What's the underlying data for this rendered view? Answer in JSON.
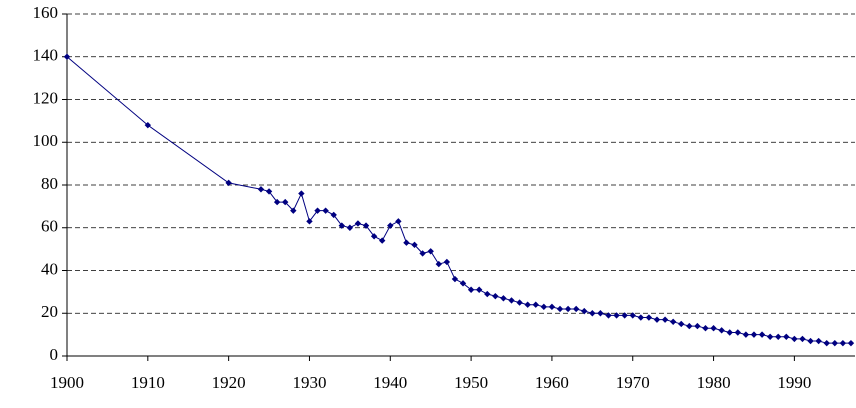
{
  "chart_data": {
    "type": "line",
    "x": [
      1900,
      1910,
      1920,
      1924,
      1925,
      1926,
      1927,
      1928,
      1929,
      1930,
      1931,
      1932,
      1933,
      1934,
      1935,
      1936,
      1937,
      1938,
      1939,
      1940,
      1941,
      1942,
      1943,
      1944,
      1945,
      1946,
      1947,
      1948,
      1949,
      1950,
      1951,
      1952,
      1953,
      1954,
      1955,
      1956,
      1957,
      1958,
      1959,
      1960,
      1961,
      1962,
      1963,
      1964,
      1965,
      1966,
      1967,
      1968,
      1969,
      1970,
      1971,
      1972,
      1973,
      1974,
      1975,
      1976,
      1977,
      1978,
      1979,
      1980,
      1981,
      1982,
      1983,
      1984,
      1985,
      1986,
      1987,
      1988,
      1989,
      1990,
      1991,
      1992,
      1993,
      1994,
      1995,
      1996,
      1997
    ],
    "values": [
      140,
      108,
      81,
      78,
      77,
      72,
      72,
      68,
      76,
      63,
      68,
      68,
      66,
      61,
      60,
      62,
      61,
      56,
      54,
      61,
      63,
      53,
      52,
      48,
      49,
      43,
      44,
      36,
      34,
      31,
      31,
      29,
      28,
      27,
      26,
      25,
      24,
      24,
      23,
      23,
      22,
      22,
      22,
      21,
      20,
      20,
      19,
      19,
      19,
      19,
      18,
      18,
      17,
      17,
      16,
      15,
      14,
      14,
      13,
      13,
      12,
      11,
      11,
      10,
      10,
      10,
      9,
      9,
      9,
      8,
      8,
      7,
      7,
      6,
      6,
      6,
      6
    ],
    "color": "#000080",
    "xlim": [
      1900,
      1997.5
    ],
    "xticks": [
      1900,
      1910,
      1920,
      1930,
      1940,
      1950,
      1960,
      1970,
      1980,
      1990
    ],
    "ylim": [
      0,
      160
    ],
    "yticks": [
      0,
      20,
      40,
      60,
      80,
      100,
      120,
      140,
      160
    ],
    "grid": true
  }
}
